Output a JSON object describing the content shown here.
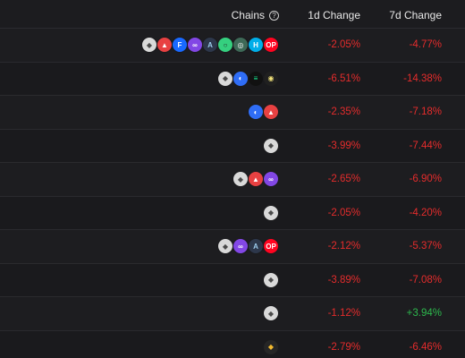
{
  "header": {
    "chains_label": "Chains",
    "help_glyph": "?",
    "change_1d_label": "1d Change",
    "change_7d_label": "7d Change"
  },
  "colors": {
    "negative": "#e52c2c",
    "positive": "#2db84d",
    "background": "#1c1c1f"
  },
  "chain_styles": {
    "ethereum": {
      "bg": "#d9d9d9",
      "fg": "#4a4a4a",
      "glyph": "◆"
    },
    "avalanche": {
      "bg": "#e84142",
      "fg": "#ffffff",
      "glyph": "▲"
    },
    "fantom": {
      "bg": "#1969ff",
      "fg": "#ffffff",
      "glyph": "F"
    },
    "polygon": {
      "bg": "#8247e5",
      "fg": "#ffffff",
      "glyph": "∞"
    },
    "arbitrum": {
      "bg": "#2d374b",
      "fg": "#9dcced",
      "glyph": "A"
    },
    "celo": {
      "bg": "#35d07f",
      "fg": "#1d1d20",
      "glyph": "○"
    },
    "gnosis": {
      "bg": "#3e6957",
      "fg": "#ffffff",
      "glyph": "◎"
    },
    "harmony": {
      "bg": "#00aee9",
      "fg": "#ffffff",
      "glyph": "H"
    },
    "optimism": {
      "bg": "#ff0420",
      "fg": "#ffffff",
      "glyph": "OP"
    },
    "base": {
      "bg": "#2f6df6",
      "fg": "#ffffff",
      "glyph": "◐"
    },
    "solana": {
      "bg": "#111111",
      "fg": "#14f195",
      "glyph": "≡"
    },
    "fuse": {
      "bg": "#202020",
      "fg": "#f3e37a",
      "glyph": "◉"
    },
    "bnb": {
      "bg": "#262626",
      "fg": "#f3ba2f",
      "glyph": "◆"
    }
  },
  "rows": [
    {
      "chains": [
        "optimism",
        "harmony",
        "gnosis",
        "celo",
        "arbitrum",
        "polygon",
        "fantom",
        "avalanche",
        "ethereum"
      ],
      "change_1d": "-2.05%",
      "change_7d": "-4.77%",
      "dir_1d": "neg",
      "dir_7d": "neg"
    },
    {
      "chains": [
        "fuse",
        "solana",
        "base",
        "ethereum"
      ],
      "change_1d": "-6.51%",
      "change_7d": "-14.38%",
      "dir_1d": "neg",
      "dir_7d": "neg"
    },
    {
      "chains": [
        "avalanche",
        "base"
      ],
      "change_1d": "-2.35%",
      "change_7d": "-7.18%",
      "dir_1d": "neg",
      "dir_7d": "neg"
    },
    {
      "chains": [
        "ethereum"
      ],
      "change_1d": "-3.99%",
      "change_7d": "-7.44%",
      "dir_1d": "neg",
      "dir_7d": "neg"
    },
    {
      "chains": [
        "polygon",
        "avalanche",
        "ethereum"
      ],
      "change_1d": "-2.65%",
      "change_7d": "-6.90%",
      "dir_1d": "neg",
      "dir_7d": "neg"
    },
    {
      "chains": [
        "ethereum"
      ],
      "change_1d": "-2.05%",
      "change_7d": "-4.20%",
      "dir_1d": "neg",
      "dir_7d": "neg"
    },
    {
      "chains": [
        "optimism",
        "arbitrum",
        "polygon",
        "ethereum"
      ],
      "change_1d": "-2.12%",
      "change_7d": "-5.37%",
      "dir_1d": "neg",
      "dir_7d": "neg"
    },
    {
      "chains": [
        "ethereum"
      ],
      "change_1d": "-3.89%",
      "change_7d": "-7.08%",
      "dir_1d": "neg",
      "dir_7d": "neg"
    },
    {
      "chains": [
        "ethereum"
      ],
      "change_1d": "-1.12%",
      "change_7d": "+3.94%",
      "dir_1d": "neg",
      "dir_7d": "pos"
    },
    {
      "chains": [
        "bnb"
      ],
      "change_1d": "-2.79%",
      "change_7d": "-6.46%",
      "dir_1d": "neg",
      "dir_7d": "neg"
    }
  ]
}
